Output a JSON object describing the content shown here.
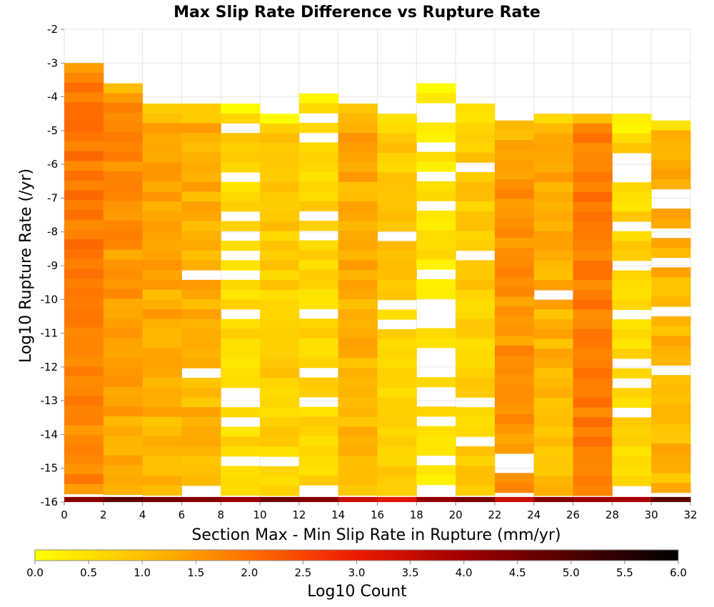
{
  "chart_data": {
    "type": "heatmap",
    "title": "Max Slip Rate Difference vs Rupture Rate",
    "xlabel": "Section Max - Min Slip Rate in Rupture (mm/yr)",
    "ylabel": "Log10 Rupture Rate (/yr)",
    "xlim": [
      0,
      32
    ],
    "ylim": [
      -16,
      -2
    ],
    "x_ticks": [
      "0",
      "2",
      "4",
      "6",
      "8",
      "10",
      "12",
      "14",
      "16",
      "18",
      "20",
      "22",
      "24",
      "26",
      "28",
      "30",
      "32"
    ],
    "y_ticks": [
      "-2",
      "-3",
      "-4",
      "-5",
      "-6",
      "-7",
      "-8",
      "-9",
      "-10",
      "-11",
      "-12",
      "-13",
      "-14",
      "-15",
      "-16"
    ],
    "x_bin_width": 2,
    "y_bin_height": 0.29,
    "columns": [
      {
        "x": 0,
        "top": -3.0,
        "profile": "peak"
      },
      {
        "x": 2,
        "top": -3.6,
        "profile": "highdesc"
      },
      {
        "x": 4,
        "top": -4.2,
        "profile": "middesc"
      },
      {
        "x": 6,
        "top": -4.2,
        "profile": "mid"
      },
      {
        "x": 8,
        "top": -4.2,
        "profile": "sparse"
      },
      {
        "x": 10,
        "top": -4.5,
        "profile": "low"
      },
      {
        "x": 12,
        "top": -3.9,
        "profile": "sparse"
      },
      {
        "x": 14,
        "top": -4.2,
        "profile": "mid"
      },
      {
        "x": 16,
        "top": -4.5,
        "profile": "low"
      },
      {
        "x": 18,
        "top": -3.6,
        "profile": "verysparse"
      },
      {
        "x": 20,
        "top": -4.2,
        "profile": "low"
      },
      {
        "x": 22,
        "top": -4.7,
        "profile": "high"
      },
      {
        "x": 24,
        "top": -4.5,
        "profile": "mid"
      },
      {
        "x": 26,
        "top": -4.5,
        "profile": "highest"
      },
      {
        "x": 28,
        "top": -4.5,
        "profile": "sparse"
      },
      {
        "x": 30,
        "top": -4.7,
        "profile": "mid"
      }
    ],
    "bottom_row_value_range": [
      3.0,
      5.0
    ],
    "colorbar": {
      "label": "Log10 Count",
      "min": 0.0,
      "max": 6.0,
      "ticks": [
        "0.0",
        "0.5",
        "1.0",
        "1.5",
        "2.0",
        "2.5",
        "3.0",
        "3.5",
        "4.0",
        "4.5",
        "5.0",
        "5.5",
        "6.0"
      ],
      "stops": [
        {
          "v": 0.0,
          "color": "#ffff00"
        },
        {
          "v": 1.0,
          "color": "#ffc000"
        },
        {
          "v": 2.0,
          "color": "#ff7000"
        },
        {
          "v": 3.0,
          "color": "#ee1a00"
        },
        {
          "v": 4.0,
          "color": "#a00000"
        },
        {
          "v": 5.0,
          "color": "#500000"
        },
        {
          "v": 6.0,
          "color": "#000000"
        }
      ]
    },
    "grid": true
  }
}
